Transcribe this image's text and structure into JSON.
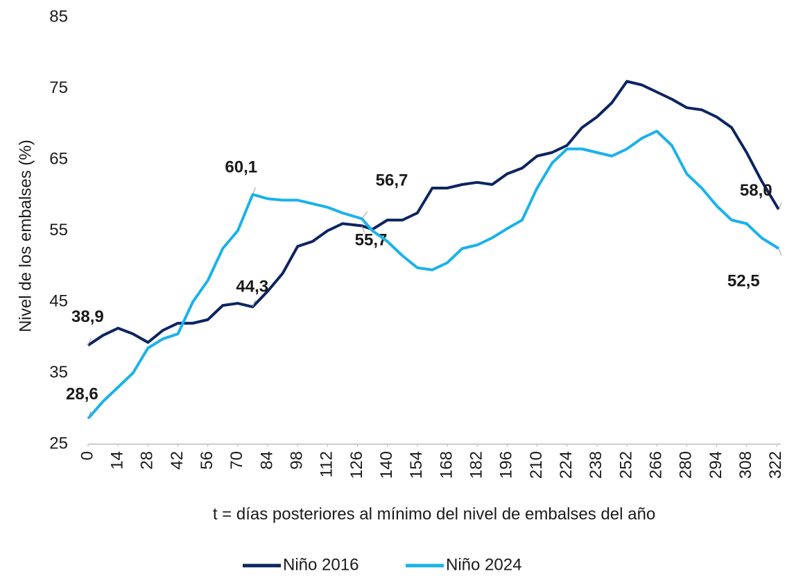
{
  "chart_data": {
    "type": "line",
    "y_label": "Nivel de los embalses (%)",
    "x_label": "t = días posteriores al mínimo del nivel de embalses del año",
    "x": [
      0,
      7,
      14,
      21,
      28,
      35,
      42,
      49,
      56,
      63,
      70,
      77,
      84,
      91,
      98,
      105,
      112,
      119,
      128,
      133,
      140,
      147,
      154,
      161,
      168,
      175,
      182,
      189,
      196,
      203,
      210,
      217,
      224,
      231,
      238,
      245,
      252,
      259,
      266,
      273,
      280,
      287,
      294,
      301,
      308,
      315,
      323
    ],
    "series": [
      {
        "name": "Niño 2016",
        "color": "#0c2461",
        "values": [
          38.9,
          40.3,
          41.3,
          40.5,
          39.3,
          41.0,
          42.0,
          42.0,
          42.5,
          44.5,
          44.8,
          44.3,
          46.5,
          49.0,
          52.8,
          53.5,
          55.0,
          56.0,
          55.7,
          55.2,
          56.5,
          56.5,
          57.5,
          61.0,
          61.0,
          61.5,
          61.8,
          61.5,
          63.0,
          63.8,
          65.5,
          66.0,
          67.0,
          69.5,
          71.0,
          73.0,
          76.0,
          75.5,
          74.5,
          73.5,
          72.3,
          72.0,
          71.0,
          69.5,
          66.0,
          62.0,
          58.0
        ],
        "value_labels": [
          "38,9",
          null,
          null,
          null,
          null,
          null,
          null,
          null,
          null,
          null,
          null,
          "44,3",
          null,
          null,
          null,
          null,
          null,
          null,
          "55,7",
          null,
          null,
          null,
          null,
          null,
          null,
          null,
          null,
          null,
          null,
          null,
          null,
          null,
          null,
          null,
          null,
          null,
          null,
          null,
          null,
          null,
          null,
          null,
          null,
          null,
          null,
          null,
          "58,0"
        ]
      },
      {
        "name": "Niño 2024",
        "color": "#1ab2ea",
        "values": [
          28.6,
          31.0,
          33.0,
          35.0,
          38.5,
          39.8,
          40.5,
          45.0,
          48.0,
          52.5,
          55.0,
          60.1,
          59.5,
          59.3,
          59.3,
          58.8,
          58.3,
          57.5,
          56.7,
          55.0,
          53.5,
          51.5,
          49.8,
          49.5,
          50.5,
          52.5,
          53.0,
          54.0,
          55.3,
          56.5,
          61.0,
          64.5,
          66.5,
          66.5,
          66.0,
          65.5,
          66.5,
          68.0,
          69.0,
          67.0,
          63.0,
          61.0,
          58.5,
          56.5,
          56.0,
          54.0,
          52.5
        ],
        "value_labels": [
          "28,6",
          null,
          null,
          null,
          null,
          null,
          null,
          null,
          null,
          null,
          null,
          "60,1",
          null,
          null,
          null,
          null,
          null,
          null,
          "56,7",
          null,
          null,
          null,
          null,
          null,
          null,
          null,
          null,
          null,
          null,
          null,
          null,
          null,
          null,
          null,
          null,
          null,
          null,
          null,
          null,
          null,
          null,
          null,
          null,
          null,
          null,
          null,
          "52,5"
        ]
      }
    ],
    "xlim": [
      0,
      324
    ],
    "xticks": [
      0,
      14,
      28,
      42,
      56,
      70,
      84,
      98,
      112,
      126,
      140,
      154,
      168,
      182,
      196,
      210,
      224,
      238,
      252,
      266,
      280,
      294,
      308,
      322
    ],
    "ylim": [
      25,
      85
    ],
    "yticks": [
      25,
      35,
      45,
      55,
      65,
      75,
      85
    ],
    "legend": "bottom"
  }
}
